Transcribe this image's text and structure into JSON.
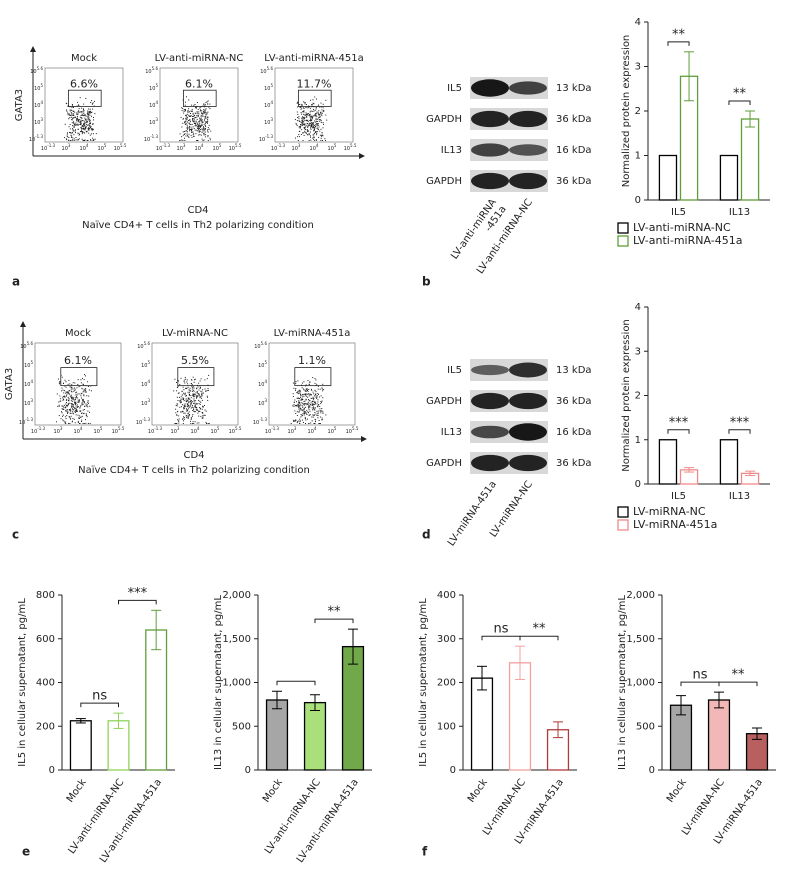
{
  "panel_labels": [
    "a",
    "b",
    "c",
    "d",
    "e",
    "f"
  ],
  "flow": [
    {
      "titles": [
        "Mock",
        "LV-anti-miRNA-NC",
        "LV-anti-miRNA-451a"
      ],
      "percents": [
        "6.6%",
        "6.1%",
        "11.7%"
      ],
      "ylabel": "GATA3",
      "xlabel": "CD4",
      "caption": "Naïve CD4+ T cells in Th2 polarizing condition",
      "xticks": [
        [
          "10",
          "-1.3"
        ],
        [
          "10",
          "3"
        ],
        [
          "10",
          "4"
        ],
        [
          "10",
          "5"
        ],
        [
          "10",
          "5.5"
        ]
      ],
      "yticks": [
        [
          "10",
          "-1.3"
        ],
        [
          "10",
          "3"
        ],
        [
          "10",
          "4"
        ],
        [
          "10",
          "5"
        ],
        [
          "10",
          "5.6"
        ]
      ]
    },
    {
      "titles": [
        "Mock",
        "LV-miRNA-NC",
        "LV-miRNA-451a"
      ],
      "percents": [
        "6.1%",
        "5.5%",
        "1.1%"
      ],
      "ylabel": "GATA3",
      "xlabel": "CD4",
      "caption": "Naïve CD4+ T cells in Th2 polarizing condition",
      "xticks": [
        [
          "10",
          "-1.3"
        ],
        [
          "10",
          "3"
        ],
        [
          "10",
          "4"
        ],
        [
          "10",
          "5"
        ],
        [
          "10",
          "5.5"
        ]
      ],
      "yticks": [
        [
          "10",
          "-1.3"
        ],
        [
          "10",
          "3"
        ],
        [
          "10",
          "4"
        ],
        [
          "10",
          "5"
        ],
        [
          "10",
          "5.6"
        ]
      ]
    }
  ],
  "blots": [
    {
      "rows": [
        "IL5",
        "GAPDH",
        "IL13",
        "GAPDH"
      ],
      "sizes": [
        "13 kDa",
        "36 kDa",
        "16 kDa",
        "36 kDa"
      ],
      "lanes": [
        "LV-anti-miRNA\n-451a",
        "LV-anti-miRNA-NC"
      ]
    },
    {
      "rows": [
        "IL5",
        "GAPDH",
        "IL13",
        "GAPDH"
      ],
      "sizes": [
        "13 kDa",
        "36 kDa",
        "16 kDa",
        "36 kDa"
      ],
      "lanes": [
        "LV-miRNA-451a",
        "LV-miRNA-NC"
      ]
    }
  ],
  "chart_data": [
    {
      "type": "grouped_bar",
      "ylabel": "Normalized protein expression",
      "categories": [
        "IL5",
        "IL13"
      ],
      "ylim": [
        0,
        4
      ],
      "yticks": [
        0,
        1,
        2,
        3,
        4
      ],
      "series": [
        {
          "name": "LV-anti-miRNA-NC",
          "color": "#ffffff",
          "edgecolor": "#000000",
          "values": [
            1,
            1
          ]
        },
        {
          "name": "LV-anti-miRNA-451a",
          "color": "#ffffff",
          "edgecolor": "#5f9e3a",
          "values": [
            2.78,
            1.82
          ],
          "errors": [
            0.55,
            0.18
          ]
        }
      ],
      "significance": [
        "**",
        "**"
      ],
      "legend": "below"
    },
    {
      "type": "grouped_bar",
      "ylabel": "Normalized protein expression",
      "categories": [
        "IL5",
        "IL13"
      ],
      "ylim": [
        0,
        4
      ],
      "yticks": [
        0,
        1,
        2,
        3,
        4
      ],
      "series": [
        {
          "name": "LV-miRNA-NC",
          "color": "#ffffff",
          "edgecolor": "#000000",
          "values": [
            1,
            1
          ]
        },
        {
          "name": "LV-miRNA-451a",
          "color": "#ffffff",
          "edgecolor": "#f08a8a",
          "values": [
            0.32,
            0.24
          ],
          "errors": [
            0.05,
            0.05
          ]
        }
      ],
      "significance": [
        "***",
        "***"
      ],
      "legend": "below"
    },
    {
      "type": "bar",
      "ylabel": "IL5 in cellular supernatant, pg/mL",
      "categories": [
        "Mock",
        "LV-anti-miRNA-NC",
        "LV-anti-miRNA-451a"
      ],
      "values": [
        225,
        225,
        640
      ],
      "errors": [
        10,
        35,
        90
      ],
      "colors": [
        "#ffffff",
        "#ffffff",
        "#ffffff"
      ],
      "edgecolors": [
        "#000000",
        "#8fd45a",
        "#5f9e3a"
      ],
      "ylim": [
        0,
        800
      ],
      "yticks": [
        0,
        200,
        400,
        600,
        800
      ],
      "annotations": [
        {
          "text": "ns",
          "between": [
            0,
            1
          ]
        },
        {
          "text": "***",
          "between": [
            1,
            2
          ]
        }
      ]
    },
    {
      "type": "bar",
      "ylabel": "IL13 in cellular supernatant, pg/mL",
      "categories": [
        "Mock",
        "LV-anti-miRNA-NC",
        "LV-anti-miRNA-451a"
      ],
      "values": [
        800,
        770,
        1410
      ],
      "errors": [
        100,
        90,
        200
      ],
      "colors": [
        "#a6a6a6",
        "#a9e07a",
        "#70a84a"
      ],
      "edgecolors": [
        "#000000",
        "#000000",
        "#000000"
      ],
      "ylim": [
        0,
        2000
      ],
      "yticks": [
        0,
        500,
        {
          "value": 1000,
          "label": "1,000"
        },
        {
          "value": 1500,
          "label": "1,500"
        },
        {
          "value": 2000,
          "label": "2,000"
        }
      ],
      "annotations": [
        {
          "text": "",
          "between": [
            0,
            1
          ]
        },
        {
          "text": "**",
          "between": [
            1,
            2
          ]
        }
      ]
    },
    {
      "type": "bar",
      "ylabel": "IL5 in cellular supernatant, pg/mL",
      "categories": [
        "Mock",
        "LV-miRNA-NC",
        "LV-miRNA-451a"
      ],
      "values": [
        210,
        245,
        92
      ],
      "errors": [
        27,
        38,
        18
      ],
      "colors": [
        "#ffffff",
        "#ffffff",
        "#ffffff"
      ],
      "edgecolors": [
        "#000000",
        "#f2a0a0",
        "#b03a3a"
      ],
      "ylim": [
        0,
        400
      ],
      "yticks": [
        0,
        100,
        200,
        300,
        400
      ],
      "annotations": [
        {
          "text": "ns",
          "between": [
            0,
            1
          ]
        },
        {
          "text": "**",
          "between": [
            1,
            2
          ]
        }
      ]
    },
    {
      "type": "bar",
      "ylabel": "IL13 in cellular supernatant, pg/mL",
      "categories": [
        "Mock",
        "LV-miRNA-NC",
        "LV-miRNA-451a"
      ],
      "values": [
        740,
        800,
        415
      ],
      "errors": [
        110,
        90,
        65
      ],
      "colors": [
        "#a6a6a6",
        "#f2b8b8",
        "#b86060"
      ],
      "edgecolors": [
        "#000000",
        "#000000",
        "#000000"
      ],
      "ylim": [
        0,
        2000
      ],
      "yticks": [
        0,
        500,
        {
          "value": 1000,
          "label": "1,000"
        },
        {
          "value": 1500,
          "label": "1,500"
        },
        {
          "value": 2000,
          "label": "2,000"
        }
      ],
      "annotations": [
        {
          "text": "ns",
          "between": [
            0,
            1
          ]
        },
        {
          "text": "**",
          "between": [
            1,
            2
          ]
        }
      ]
    }
  ]
}
